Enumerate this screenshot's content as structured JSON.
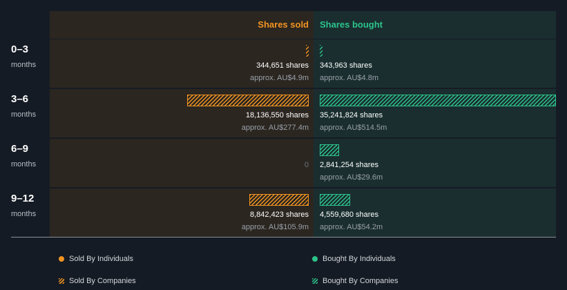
{
  "colors": {
    "sold": "#f29421",
    "bought": "#2cc38b",
    "background": "#151b24"
  },
  "header": {
    "sold_label": "Shares sold",
    "bought_label": "Shares bought"
  },
  "rows": [
    {
      "period": "0–3",
      "unit": "months",
      "sold_value": "344,651 shares",
      "sold_approx": "approx. AU$4.9m",
      "bought_value": "343,963 shares",
      "bought_approx": "approx. AU$4.8m"
    },
    {
      "period": "3–6",
      "unit": "months",
      "sold_value": "18,136,550 shares",
      "sold_approx": "approx. AU$277.4m",
      "bought_value": "35,241,824 shares",
      "bought_approx": "approx. AU$514.5m"
    },
    {
      "period": "6–9",
      "unit": "months",
      "sold_zero": "0",
      "bought_value": "2,841,254 shares",
      "bought_approx": "approx. AU$29.6m"
    },
    {
      "period": "9–12",
      "unit": "months",
      "sold_value": "8,842,423 shares",
      "sold_approx": "approx. AU$105.9m",
      "bought_value": "4,559,680 shares",
      "bought_approx": "approx. AU$54.2m"
    }
  ],
  "legend": {
    "sold_individuals": "Sold By Individuals",
    "bought_individuals": "Bought By Individuals",
    "sold_companies": "Sold By Companies",
    "bought_companies": "Bought By Companies"
  },
  "chart_data": {
    "type": "bar",
    "orientation": "horizontal-diverging",
    "categories": [
      "0–3 months",
      "3–6 months",
      "6–9 months",
      "9–12 months"
    ],
    "series": [
      {
        "name": "Shares sold",
        "values": [
          344651,
          18136550,
          0,
          8842423
        ],
        "approx_value_aud_m": [
          4.9,
          277.4,
          0,
          105.9
        ]
      },
      {
        "name": "Shares bought",
        "values": [
          343963,
          35241824,
          2841254,
          4559680
        ],
        "approx_value_aud_m": [
          4.8,
          514.5,
          29.6,
          54.2
        ]
      }
    ],
    "legend": [
      "Sold By Individuals",
      "Bought By Individuals",
      "Sold By Companies",
      "Bought By Companies"
    ],
    "legend_position": "bottom"
  }
}
